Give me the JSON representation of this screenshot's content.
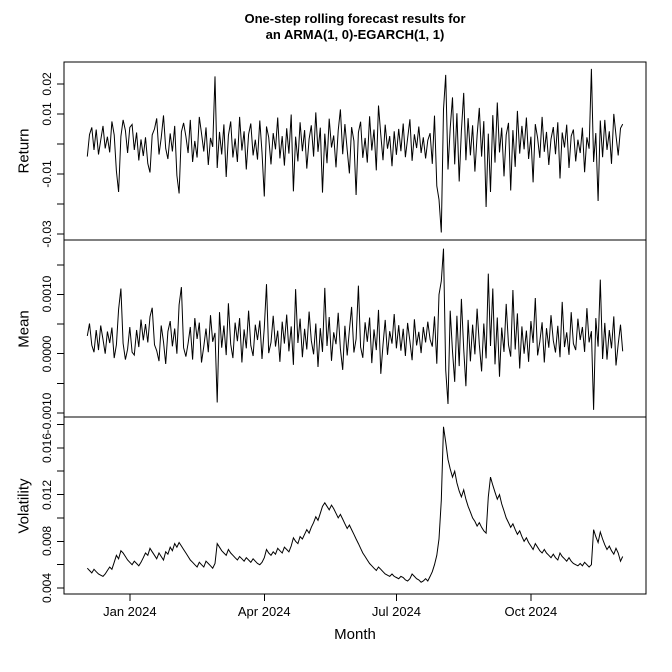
{
  "title": {
    "line1": "One-step rolling forecast results for",
    "line2": "an ARMA(1, 0)-EGARCH(1, 1)"
  },
  "colors": {
    "line": "#000000",
    "background": "#ffffff",
    "text": "#000000"
  },
  "x_axis": {
    "label": "Month",
    "ticks": [
      {
        "index": 19,
        "label": "Jan 2024"
      },
      {
        "index": 79,
        "label": "Apr 2024"
      },
      {
        "index": 138,
        "label": "Jul 2024"
      },
      {
        "index": 198,
        "label": "Oct 2024"
      }
    ]
  },
  "chart_data": [
    {
      "type": "line",
      "name": "Return",
      "ylabel": "Return",
      "ylim": [
        -0.032,
        0.0273
      ],
      "yticks": [
        {
          "v": 0.02,
          "label": "0.02"
        },
        {
          "v": 0.01,
          "label": "0.01"
        },
        {
          "v": 0.0,
          "label": ""
        },
        {
          "v": -0.01,
          "label": "-0.01"
        },
        {
          "v": -0.02,
          "label": ""
        },
        {
          "v": -0.03,
          "label": "-0.03"
        }
      ],
      "values": [
        -0.0042,
        0.0031,
        0.0055,
        -0.002,
        0.0048,
        -0.0035,
        0.0012,
        0.006,
        -0.0015,
        0.0024,
        -0.0028,
        0.0075,
        0.003,
        -0.009,
        -0.016,
        0.0025,
        0.008,
        0.0045,
        -0.003,
        0.0055,
        0.0065,
        -0.002,
        0.0038,
        -0.0055,
        0.0015,
        -0.004,
        0.0022,
        -0.0065,
        -0.0095,
        0.003,
        0.005,
        0.0085,
        -0.0035,
        0.002,
        0.0095,
        -0.0015,
        -0.005,
        0.0035,
        -0.0025,
        0.006,
        -0.0105,
        -0.0165,
        0.004,
        0.007,
        0.0025,
        -0.003,
        0.008,
        -0.006,
        0.001,
        -0.0045,
        0.009,
        0.0035,
        -0.0025,
        0.0055,
        -0.007,
        0.002,
        -0.001,
        0.0225,
        -0.008,
        0.004,
        -0.0035,
        0.0065,
        -0.011,
        0.0028,
        0.0075,
        -0.0045,
        0.0018,
        -0.006,
        0.009,
        -0.0022,
        0.0042,
        -0.0085,
        0.0032,
        0.0068,
        -0.0038,
        0.0014,
        -0.0052,
        0.0078,
        -0.0028,
        -0.0175,
        0.0058,
        0.0022,
        -0.0068,
        0.0036,
        -0.0018,
        0.0088,
        -0.0048,
        0.0026,
        -0.0072,
        0.0052,
        -0.0032,
        0.0098,
        -0.0158,
        0.0024,
        -0.0058,
        0.0072,
        -0.0024,
        0.0046,
        -0.0082,
        0.0016,
        0.0062,
        -0.0042,
        0.0105,
        -0.0026,
        0.0054,
        -0.0162,
        0.0034,
        -0.0064,
        0.0084,
        -0.0012,
        0.0028,
        -0.0078,
        0.0044,
        0.0115,
        -0.0034,
        0.0066,
        -0.002,
        -0.0098,
        0.0056,
        0.001,
        -0.017,
        0.0038,
        0.0074,
        -0.0046,
        0.002,
        -0.0062,
        0.0092,
        -0.0022,
        0.0048,
        -0.0088,
        0.0128,
        0.003,
        -0.0054,
        0.0064,
        -0.0016,
        0.0026,
        -0.0074,
        0.0042,
        -0.0036,
        0.005,
        -0.0024,
        0.0068,
        -0.0044,
        0.0018,
        0.0082,
        -0.0056,
        0.0032,
        -0.0014,
        0.0058,
        -0.003,
        0.0022,
        -0.0048,
        0.0012,
        0.0036,
        -0.0066,
        0.0094,
        -0.014,
        -0.0185,
        -0.0295,
        0.0115,
        0.023,
        -0.0085,
        0.0052,
        0.0155,
        -0.0068,
        0.0102,
        -0.0125,
        0.0044,
        0.017,
        -0.0054,
        0.0086,
        -0.0038,
        0.0062,
        -0.0092,
        0.0028,
        0.012,
        -0.0042,
        0.0076,
        -0.021,
        0.0034,
        -0.016,
        0.0096,
        -0.0062,
        0.0138,
        -0.0028,
        0.0054,
        -0.0108,
        0.003,
        0.007,
        -0.0155,
        0.0046,
        -0.0076,
        0.011,
        -0.0032,
        0.006,
        -0.0018,
        0.0088,
        -0.005,
        0.0024,
        -0.0128,
        0.0066,
        0.002,
        -0.0046,
        0.009,
        -0.0026,
        0.004,
        -0.007,
        0.0016,
        0.0056,
        -0.0034,
        0.0072,
        -0.0115,
        0.0038,
        -0.0012,
        0.0064,
        -0.008,
        0.0026,
        0.0048,
        -0.0058,
        0.0014,
        -0.003,
        0.0054,
        -0.0094,
        0.0022,
        -0.0016,
        0.025,
        -0.006,
        0.0036,
        -0.019,
        0.0078,
        -0.0044,
        0.008,
        -0.002,
        0.0042,
        -0.0066,
        0.01,
        0.0028,
        -0.0038,
        0.0052,
        0.0066
      ]
    },
    {
      "type": "line",
      "name": "Mean",
      "ylabel": "Mean",
      "ylim": [
        -0.00107,
        0.00192
      ],
      "yticks": [
        {
          "v": 0.0015,
          "label": ""
        },
        {
          "v": 0.001,
          "label": "0.0010"
        },
        {
          "v": 0.0005,
          "label": ""
        },
        {
          "v": 0.0,
          "label": "0.0000"
        },
        {
          "v": -0.0005,
          "label": ""
        },
        {
          "v": -0.001,
          "label": "-0.0010"
        }
      ],
      "values": [
        0.0003,
        0.00051,
        0.000145,
        2.5e-05,
        0.0004,
        6e-05,
        0.000475,
        0.00024,
        0.0,
        0.000375,
        0.00018,
        0.00044,
        -7.5e-05,
        0.00015,
        0.00075,
        0.0011,
        0.000175,
        -0.0001,
        7.5e-05,
        0.00045,
        2.5e-05,
        -2.5e-05,
        0.0004,
        0.00011,
        0.000575,
        0.000225,
        0.0005,
        0.00019,
        0.000625,
        0.000775,
        0.00015,
        5e-05,
        -0.000125,
        0.000475,
        0.0002,
        -0.000175,
        0.000375,
        0.00055,
        0.000125,
        0.000425,
        0.0,
        0.000825,
        0.001125,
        0.0001,
        -5e-05,
        0.000175,
        0.00045,
        -0.0001,
        0.0006,
        0.00025,
        0.000525,
        -0.00015,
        0.000125,
        0.000425,
        2.5e-05,
        0.00065,
        0.0002,
        0.00035,
        -0.000825,
        0.0007,
        0.0001,
        0.000475,
        -2.5e-05,
        0.00085,
        0.00016,
        -7.5e-05,
        0.000525,
        0.00021,
        0.0006,
        -0.00015,
        0.00041,
        9e-05,
        0.000725,
        0.00014,
        -4e-05,
        0.00049,
        0.00023,
        0.00056,
        -9e-05,
        0.00044,
        0.001175,
        1e-05,
        0.00019,
        0.00064,
        0.00012,
        0.00039,
        -0.00014,
        0.00054,
        0.00017,
        0.00066,
        4e-05,
        0.00046,
        -0.00019,
        0.00109,
        0.00018,
        0.00059,
        -6e-05,
        0.00042,
        7e-05,
        0.00071,
        0.00022,
        -1e-05,
        0.00051,
        -0.000225,
        0.00043,
        3e-05,
        0.00111,
        0.00013,
        0.00062,
        -0.00012,
        0.00036,
        0.00016,
        0.00069,
        8e-05,
        -0.000275,
        0.00047,
        -3e-05,
        0.0004,
        0.00079,
        2e-05,
        0.00025,
        0.00115,
        0.00011,
        -7e-05,
        0.00053,
        0.0002,
        0.00061,
        -0.00016,
        0.00041,
        6e-05,
        0.00074,
        -0.00034,
        0.00015,
        0.00057,
        -2e-05,
        0.00038,
        0.00017,
        0.00067,
        9e-05,
        0.00048,
        5e-05,
        0.00042,
        -4e-05,
        0.00052,
        0.00021,
        -0.00011,
        0.00058,
        0.00014,
        0.00037,
        1e-05,
        0.00045,
        0.00019,
        0.00054,
        0.00024,
        0.00012,
        0.00063,
        -0.00017,
        0.001,
        0.001225,
        0.001775,
        -0.000275,
        -0.00085,
        0.000725,
        4e-05,
        -0.000475,
        0.00064,
        -0.00021,
        0.000925,
        8e-05,
        -0.00055,
        0.00057,
        -0.00013,
        0.00049,
        -1e-05,
        0.00076,
        0.00016,
        -0.0003,
        0.00051,
        -8e-05,
        0.00135,
        0.00013,
        0.0011,
        -0.00018,
        0.00061,
        -0.00039,
        0.00044,
        3e-05,
        0.00084,
        0.00015,
        -5e-05,
        0.001075,
        7e-05,
        0.00068,
        -0.00025,
        0.00046,
        0.0,
        0.00039,
        -0.00014,
        0.00055,
        0.00018,
        0.00094,
        -3e-05,
        0.0002,
        0.00053,
        -0.00015,
        0.00043,
        0.0001,
        0.00065,
        0.00022,
        2e-05,
        0.00047,
        -6e-05,
        0.000875,
        0.00011,
        0.00036,
        -2e-05,
        0.0007,
        0.00017,
        6e-05,
        0.00059,
        0.00023,
        0.00045,
        3e-05,
        0.00077,
        0.00019,
        0.00038,
        -0.00095,
        0.0006,
        0.00012,
        0.00125,
        -9e-05,
        0.00052,
        -0.0001,
        0.0004,
        9e-05,
        0.00063,
        -0.0002,
        0.00016,
        0.00049,
        4e-05
      ]
    },
    {
      "type": "line",
      "name": "Volatility",
      "ylabel": "Volatility",
      "ylim": [
        0.00349,
        0.01864
      ],
      "yticks": [
        {
          "v": 0.018,
          "label": ""
        },
        {
          "v": 0.016,
          "label": "0.016"
        },
        {
          "v": 0.014,
          "label": ""
        },
        {
          "v": 0.012,
          "label": "0.012"
        },
        {
          "v": 0.01,
          "label": ""
        },
        {
          "v": 0.008,
          "label": "0.008"
        },
        {
          "v": 0.006,
          "label": ""
        },
        {
          "v": 0.004,
          "label": "0.004"
        }
      ],
      "values": [
        0.0057,
        0.0055,
        0.0053,
        0.0056,
        0.0054,
        0.0052,
        0.0051,
        0.005,
        0.0052,
        0.0055,
        0.0058,
        0.0056,
        0.0062,
        0.0068,
        0.0065,
        0.0072,
        0.007,
        0.0067,
        0.0064,
        0.0062,
        0.006,
        0.0063,
        0.0061,
        0.0059,
        0.0062,
        0.0066,
        0.007,
        0.0068,
        0.0074,
        0.0071,
        0.0068,
        0.0065,
        0.007,
        0.0067,
        0.0064,
        0.0071,
        0.0069,
        0.0075,
        0.0072,
        0.0078,
        0.0075,
        0.0079,
        0.0076,
        0.0073,
        0.007,
        0.0067,
        0.0064,
        0.0062,
        0.006,
        0.0058,
        0.0062,
        0.006,
        0.0058,
        0.0063,
        0.0061,
        0.0059,
        0.0057,
        0.0061,
        0.0078,
        0.0075,
        0.0072,
        0.007,
        0.0068,
        0.0073,
        0.007,
        0.0068,
        0.0066,
        0.0064,
        0.0067,
        0.0065,
        0.0063,
        0.0066,
        0.0064,
        0.0062,
        0.0065,
        0.0063,
        0.0061,
        0.006,
        0.0062,
        0.0066,
        0.0073,
        0.007,
        0.0068,
        0.0071,
        0.0069,
        0.0074,
        0.0072,
        0.007,
        0.0075,
        0.0073,
        0.0071,
        0.0076,
        0.0083,
        0.008,
        0.0078,
        0.0084,
        0.0082,
        0.0086,
        0.009,
        0.0087,
        0.0092,
        0.0096,
        0.0101,
        0.0098,
        0.0104,
        0.011,
        0.0113,
        0.011,
        0.0107,
        0.0111,
        0.0108,
        0.0104,
        0.01,
        0.0103,
        0.0099,
        0.0095,
        0.0091,
        0.0094,
        0.009,
        0.0086,
        0.0082,
        0.0078,
        0.0074,
        0.007,
        0.0067,
        0.0064,
        0.0061,
        0.0059,
        0.0057,
        0.0055,
        0.0058,
        0.0056,
        0.0054,
        0.0052,
        0.0051,
        0.005,
        0.0052,
        0.005,
        0.0049,
        0.0048,
        0.005,
        0.0049,
        0.0047,
        0.0046,
        0.0048,
        0.0052,
        0.005,
        0.0048,
        0.0047,
        0.0045,
        0.0046,
        0.0048,
        0.0046,
        0.005,
        0.0054,
        0.006,
        0.0068,
        0.0082,
        0.0115,
        0.0178,
        0.0165,
        0.015,
        0.0142,
        0.0135,
        0.014,
        0.013,
        0.0123,
        0.0118,
        0.0124,
        0.0116,
        0.011,
        0.0105,
        0.01,
        0.0097,
        0.0093,
        0.0096,
        0.0092,
        0.0089,
        0.0087,
        0.0118,
        0.0135,
        0.0128,
        0.0122,
        0.0116,
        0.012,
        0.0112,
        0.0106,
        0.01,
        0.0096,
        0.0092,
        0.0095,
        0.009,
        0.0086,
        0.0089,
        0.0084,
        0.008,
        0.0083,
        0.0079,
        0.0076,
        0.0073,
        0.0078,
        0.0075,
        0.0072,
        0.007,
        0.0073,
        0.007,
        0.0068,
        0.0066,
        0.0069,
        0.0066,
        0.0064,
        0.007,
        0.0067,
        0.0065,
        0.0063,
        0.0066,
        0.0063,
        0.0061,
        0.006,
        0.0059,
        0.0061,
        0.0059,
        0.0062,
        0.006,
        0.0058,
        0.006,
        0.009,
        0.0084,
        0.0079,
        0.0088,
        0.0082,
        0.0077,
        0.0073,
        0.0076,
        0.0072,
        0.0069,
        0.0074,
        0.007,
        0.0063,
        0.0067
      ]
    }
  ]
}
